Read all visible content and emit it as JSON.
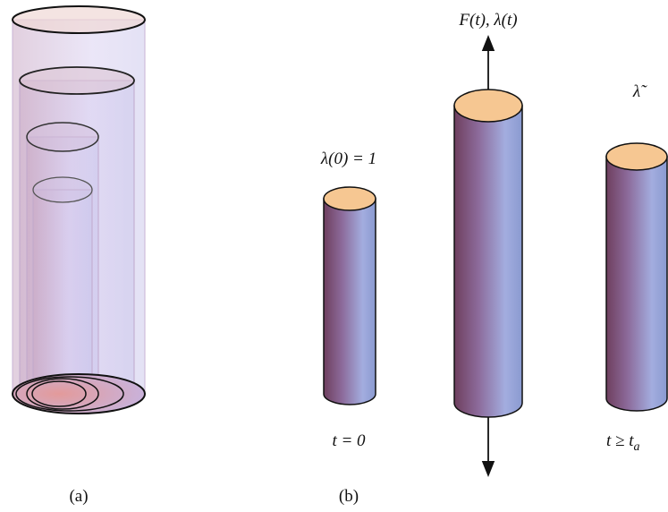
{
  "panel_a": {
    "label": "(a)"
  },
  "panel_b": {
    "label": "(b)",
    "cylinders": [
      {
        "top_label": "λ(0) = 1",
        "bottom_label": "t = 0"
      },
      {
        "top_label": "F(t), λ(t)"
      },
      {
        "top_label": "λ̃",
        "bottom_label": {
          "text": "t ≥ t",
          "subscript": "a"
        }
      }
    ]
  }
}
